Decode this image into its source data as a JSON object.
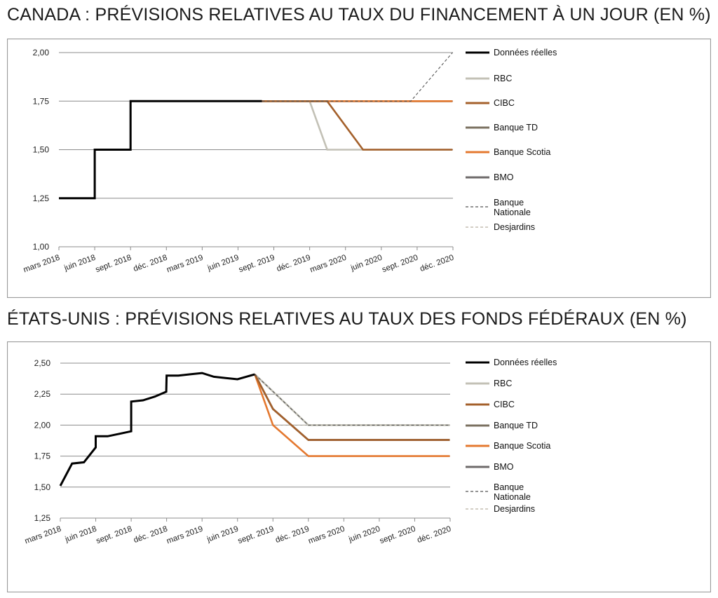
{
  "chart_data": [
    {
      "type": "line",
      "title": "CANADA : PRÉVISIONS RELATIVES AU TAUX DU FINANCEMENT À UN JOUR (EN %)",
      "x_ticks": [
        "mars 2018",
        "juin 2018",
        "sept. 2018",
        "déc. 2018",
        "mars 2019",
        "juin 2019",
        "sept. 2019",
        "déc. 2019",
        "mars 2020",
        "juin 2020",
        "sept. 2020",
        "déc. 2020"
      ],
      "y_ticks": [
        "1,00",
        "1,25",
        "1,50",
        "1,75",
        "2,00"
      ],
      "ylim": [
        1.0,
        2.0
      ],
      "grid": "horizontal",
      "legend_position": "right",
      "series": [
        {
          "name": "Données réelles",
          "color": "#000000",
          "style": "solid",
          "points": [
            [
              "2018-03-01",
              1.25
            ],
            [
              "2018-06-01",
              1.25
            ],
            [
              "2018-06-01",
              1.5
            ],
            [
              "2018-09-01",
              1.5
            ],
            [
              "2018-09-01",
              1.75
            ],
            [
              "2019-08-01",
              1.75
            ]
          ]
        },
        {
          "name": "RBC",
          "color": "#c3c1b6",
          "style": "solid",
          "points": [
            [
              "2019-08-01",
              1.75
            ],
            [
              "2019-12-01",
              1.75
            ],
            [
              "2020-01-15",
              1.5
            ],
            [
              "2020-11-30",
              1.5
            ]
          ]
        },
        {
          "name": "CIBC",
          "color": "#a4602b",
          "style": "solid",
          "points": [
            [
              "2019-08-01",
              1.75
            ],
            [
              "2020-01-15",
              1.75
            ],
            [
              "2020-04-15",
              1.5
            ],
            [
              "2020-11-30",
              1.5
            ]
          ]
        },
        {
          "name": "Banque TD",
          "color": "#7b7161",
          "style": "solid",
          "points": [
            [
              "2019-08-01",
              1.75
            ],
            [
              "2020-11-30",
              1.75
            ]
          ]
        },
        {
          "name": "Banque Scotia",
          "color": "#e4782f",
          "style": "solid",
          "points": [
            [
              "2019-08-01",
              1.75
            ],
            [
              "2020-11-30",
              1.75
            ]
          ]
        },
        {
          "name": "BMO",
          "color": "#6e6a6a",
          "style": "solid",
          "points": [
            [
              "2019-08-01",
              1.75
            ],
            [
              "2020-11-30",
              1.75
            ]
          ]
        },
        {
          "name": "Banque Nationale",
          "color": "#555555",
          "style": "dashed",
          "points": [
            [
              "2019-08-01",
              1.75
            ],
            [
              "2020-08-15",
              1.75
            ],
            [
              "2020-11-30",
              2.0
            ]
          ]
        },
        {
          "name": "Desjardins",
          "color": "#b9b1a2",
          "style": "dashed",
          "points": [
            [
              "2019-08-01",
              1.75
            ],
            [
              "2020-11-30",
              1.75
            ]
          ]
        }
      ]
    },
    {
      "type": "line",
      "title": "ÉTATS-UNIS : PRÉVISIONS RELATIVES AU TAUX DES FONDS FÉDÉRAUX (EN %)",
      "x_ticks": [
        "mars 2018",
        "juin 2018",
        "sept. 2018",
        "déc. 2018",
        "mars 2019",
        "juin 2019",
        "sept. 2019",
        "déc. 2019",
        "mars 2020",
        "juin 2020",
        "sept. 2020",
        "déc. 2020"
      ],
      "y_ticks": [
        "1,25",
        "1,50",
        "1,75",
        "2,00",
        "2,25",
        "2,50"
      ],
      "ylim": [
        1.25,
        2.5
      ],
      "grid": "horizontal",
      "legend_position": "right",
      "series": [
        {
          "name": "Données réelles",
          "color": "#000000",
          "style": "solid",
          "points": [
            [
              "2018-03-01",
              1.51
            ],
            [
              "2018-04-01",
              1.69
            ],
            [
              "2018-05-01",
              1.7
            ],
            [
              "2018-05-31",
              1.82
            ],
            [
              "2018-06-01",
              1.91
            ],
            [
              "2018-07-01",
              1.91
            ],
            [
              "2018-08-01",
              1.93
            ],
            [
              "2018-08-31",
              1.95
            ],
            [
              "2018-09-01",
              2.19
            ],
            [
              "2018-10-01",
              2.2
            ],
            [
              "2018-11-01",
              2.23
            ],
            [
              "2018-11-30",
              2.27
            ],
            [
              "2018-12-01",
              2.4
            ],
            [
              "2019-01-01",
              2.4
            ],
            [
              "2019-02-01",
              2.41
            ],
            [
              "2019-03-01",
              2.42
            ],
            [
              "2019-04-01",
              2.39
            ],
            [
              "2019-05-01",
              2.38
            ],
            [
              "2019-06-01",
              2.37
            ],
            [
              "2019-07-15",
              2.41
            ]
          ]
        },
        {
          "name": "RBC",
          "color": "#c3c1b6",
          "style": "solid",
          "points": [
            [
              "2019-07-15",
              2.41
            ],
            [
              "2019-12-01",
              2.0
            ],
            [
              "2020-11-30",
              2.0
            ]
          ]
        },
        {
          "name": "CIBC",
          "color": "#a4602b",
          "style": "solid",
          "points": [
            [
              "2019-07-15",
              2.41
            ],
            [
              "2019-09-01",
              2.13
            ],
            [
              "2019-12-01",
              1.88
            ],
            [
              "2020-11-30",
              1.88
            ]
          ]
        },
        {
          "name": "Banque TD",
          "color": "#7b7161",
          "style": "solid",
          "points": [
            [
              "2019-07-15",
              2.41
            ],
            [
              "2019-09-01",
              2.13
            ],
            [
              "2019-12-01",
              1.88
            ],
            [
              "2020-11-30",
              1.88
            ]
          ]
        },
        {
          "name": "Banque Scotia",
          "color": "#e4782f",
          "style": "solid",
          "points": [
            [
              "2019-07-15",
              2.41
            ],
            [
              "2019-09-01",
              2.0
            ],
            [
              "2019-12-01",
              1.75
            ],
            [
              "2020-11-30",
              1.75
            ]
          ]
        },
        {
          "name": "BMO",
          "color": "#6e6a6a",
          "style": "solid",
          "points": [
            [
              "2019-07-15",
              2.41
            ],
            [
              "2019-09-01",
              2.13
            ],
            [
              "2019-12-01",
              1.88
            ],
            [
              "2020-11-30",
              1.88
            ]
          ]
        },
        {
          "name": "Banque Nationale",
          "color": "#555555",
          "style": "dashed",
          "points": [
            [
              "2019-07-15",
              2.41
            ],
            [
              "2019-12-01",
              2.0
            ],
            [
              "2020-11-30",
              2.0
            ]
          ]
        },
        {
          "name": "Desjardins",
          "color": "#b9b1a2",
          "style": "dashed",
          "points": [
            [
              "2019-09-01",
              2.0
            ],
            [
              "2020-11-30",
              2.0
            ]
          ]
        }
      ]
    }
  ]
}
